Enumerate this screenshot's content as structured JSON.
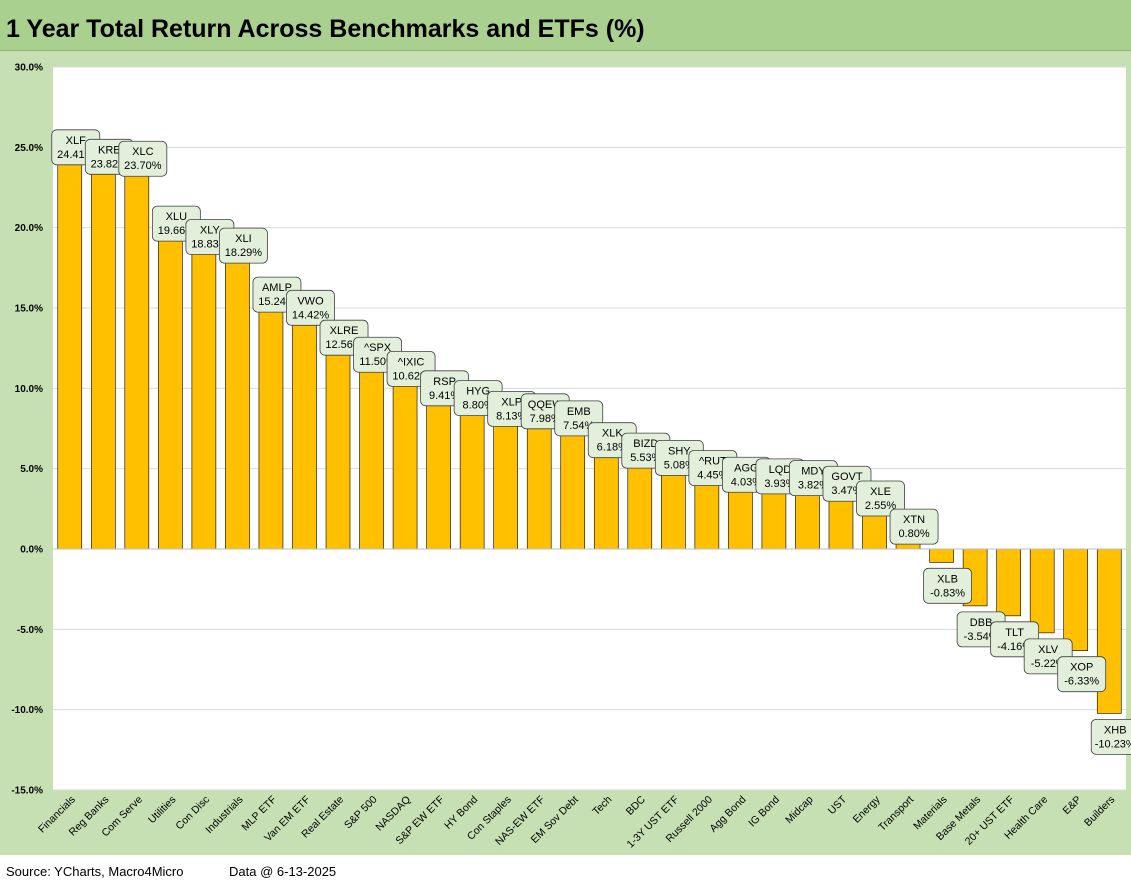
{
  "header": {
    "title": "1 Year Total Return Across Benchmarks and ETFs (%)"
  },
  "footer": {
    "source": "Source: YCharts, Macro4Micro",
    "date": "Data @ 6-13-2025"
  },
  "colors": {
    "bar": "#ffc000",
    "chart_bg": "#c6e0b4",
    "plot_bg": "#ffffff",
    "label_box": "#e2efda",
    "title_bg": "#a9d08e"
  },
  "chart_data": {
    "type": "bar",
    "title": "1 Year Total Return Across Benchmarks and ETFs (%)",
    "xlabel": "",
    "ylabel": "",
    "ylim": [
      -15,
      30
    ],
    "yticks": [
      30,
      25,
      20,
      15,
      10,
      5,
      0,
      -5,
      -10,
      -15
    ],
    "ytick_labels": [
      "30.0%",
      "25.0%",
      "20.0%",
      "15.0%",
      "10.0%",
      "5.0%",
      "0.0%",
      "-5.0%",
      "-10.0%",
      "-15.0%"
    ],
    "grid": true,
    "legend": "none",
    "categories": [
      "Financials",
      "Reg Banks",
      "Com Serve",
      "Utilities",
      "Con Disc",
      "Industrials",
      "MLP ETF",
      "Van EM ETF",
      "Real Estate",
      "S&P 500",
      "NASDAQ",
      "S&P EW ETF",
      "HY Bond",
      "Con Staples",
      "NAS-EW ETF",
      "EM Sov Debt",
      "Tech",
      "BDC",
      "1-3Y UST ETF",
      "Russell 2000",
      "Agg Bond",
      "IG Bond",
      "Midcap",
      "UST",
      "Energy",
      "Transport",
      "Materials",
      "Base Metals",
      "20+ UST ETF",
      "Health Care",
      "E&P",
      "Builders"
    ],
    "tickers": [
      "XLF",
      "KRE",
      "XLC",
      "XLU",
      "XLY",
      "XLI",
      "AMLP",
      "VWO",
      "XLRE",
      "^SPX",
      "^IXIC",
      "RSP",
      "HYG",
      "XLP",
      "QQEW",
      "EMB",
      "XLK",
      "BIZD",
      "SHY",
      "^RUT",
      "AGG",
      "LQD",
      "MDY",
      "GOVT",
      "XLE",
      "XTN",
      "XLB",
      "DBB",
      "TLT",
      "XLV",
      "XOP",
      "XHB"
    ],
    "values": [
      24.41,
      23.82,
      23.7,
      19.66,
      18.83,
      18.29,
      15.24,
      14.42,
      12.56,
      11.5,
      10.62,
      9.41,
      8.8,
      8.13,
      7.98,
      7.54,
      6.18,
      5.53,
      5.08,
      4.45,
      4.03,
      3.93,
      3.82,
      3.47,
      2.55,
      0.8,
      -0.83,
      -3.54,
      -4.16,
      -5.22,
      -6.33,
      -10.23
    ],
    "value_labels": [
      "24.41%",
      "23.82%",
      "23.70%",
      "19.66%",
      "18.83%",
      "18.29%",
      "15.24%",
      "14.42%",
      "12.56%",
      "11.50%",
      "10.62%",
      "9.41%",
      "8.80%",
      "8.13%",
      "7.98%",
      "7.54%",
      "6.18%",
      "5.53%",
      "5.08%",
      "4.45%",
      "4.03%",
      "3.93%",
      "3.82%",
      "3.47%",
      "2.55%",
      "0.80%",
      "-0.83%",
      "-3.54%",
      "-4.16%",
      "-5.22%",
      "-6.33%",
      "-10.23%"
    ]
  }
}
